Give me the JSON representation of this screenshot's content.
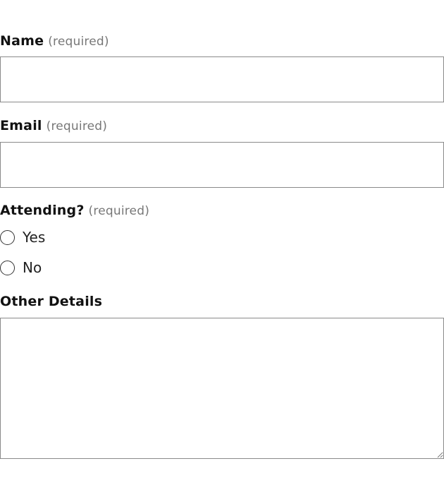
{
  "form": {
    "name": {
      "label": "Name",
      "required": "(required)",
      "value": ""
    },
    "email": {
      "label": "Email",
      "required": "(required)",
      "value": ""
    },
    "attending": {
      "label": "Attending?",
      "required": "(required)",
      "options": [
        "Yes",
        "No"
      ],
      "selected": null
    },
    "details": {
      "label": "Other Details",
      "value": ""
    }
  }
}
